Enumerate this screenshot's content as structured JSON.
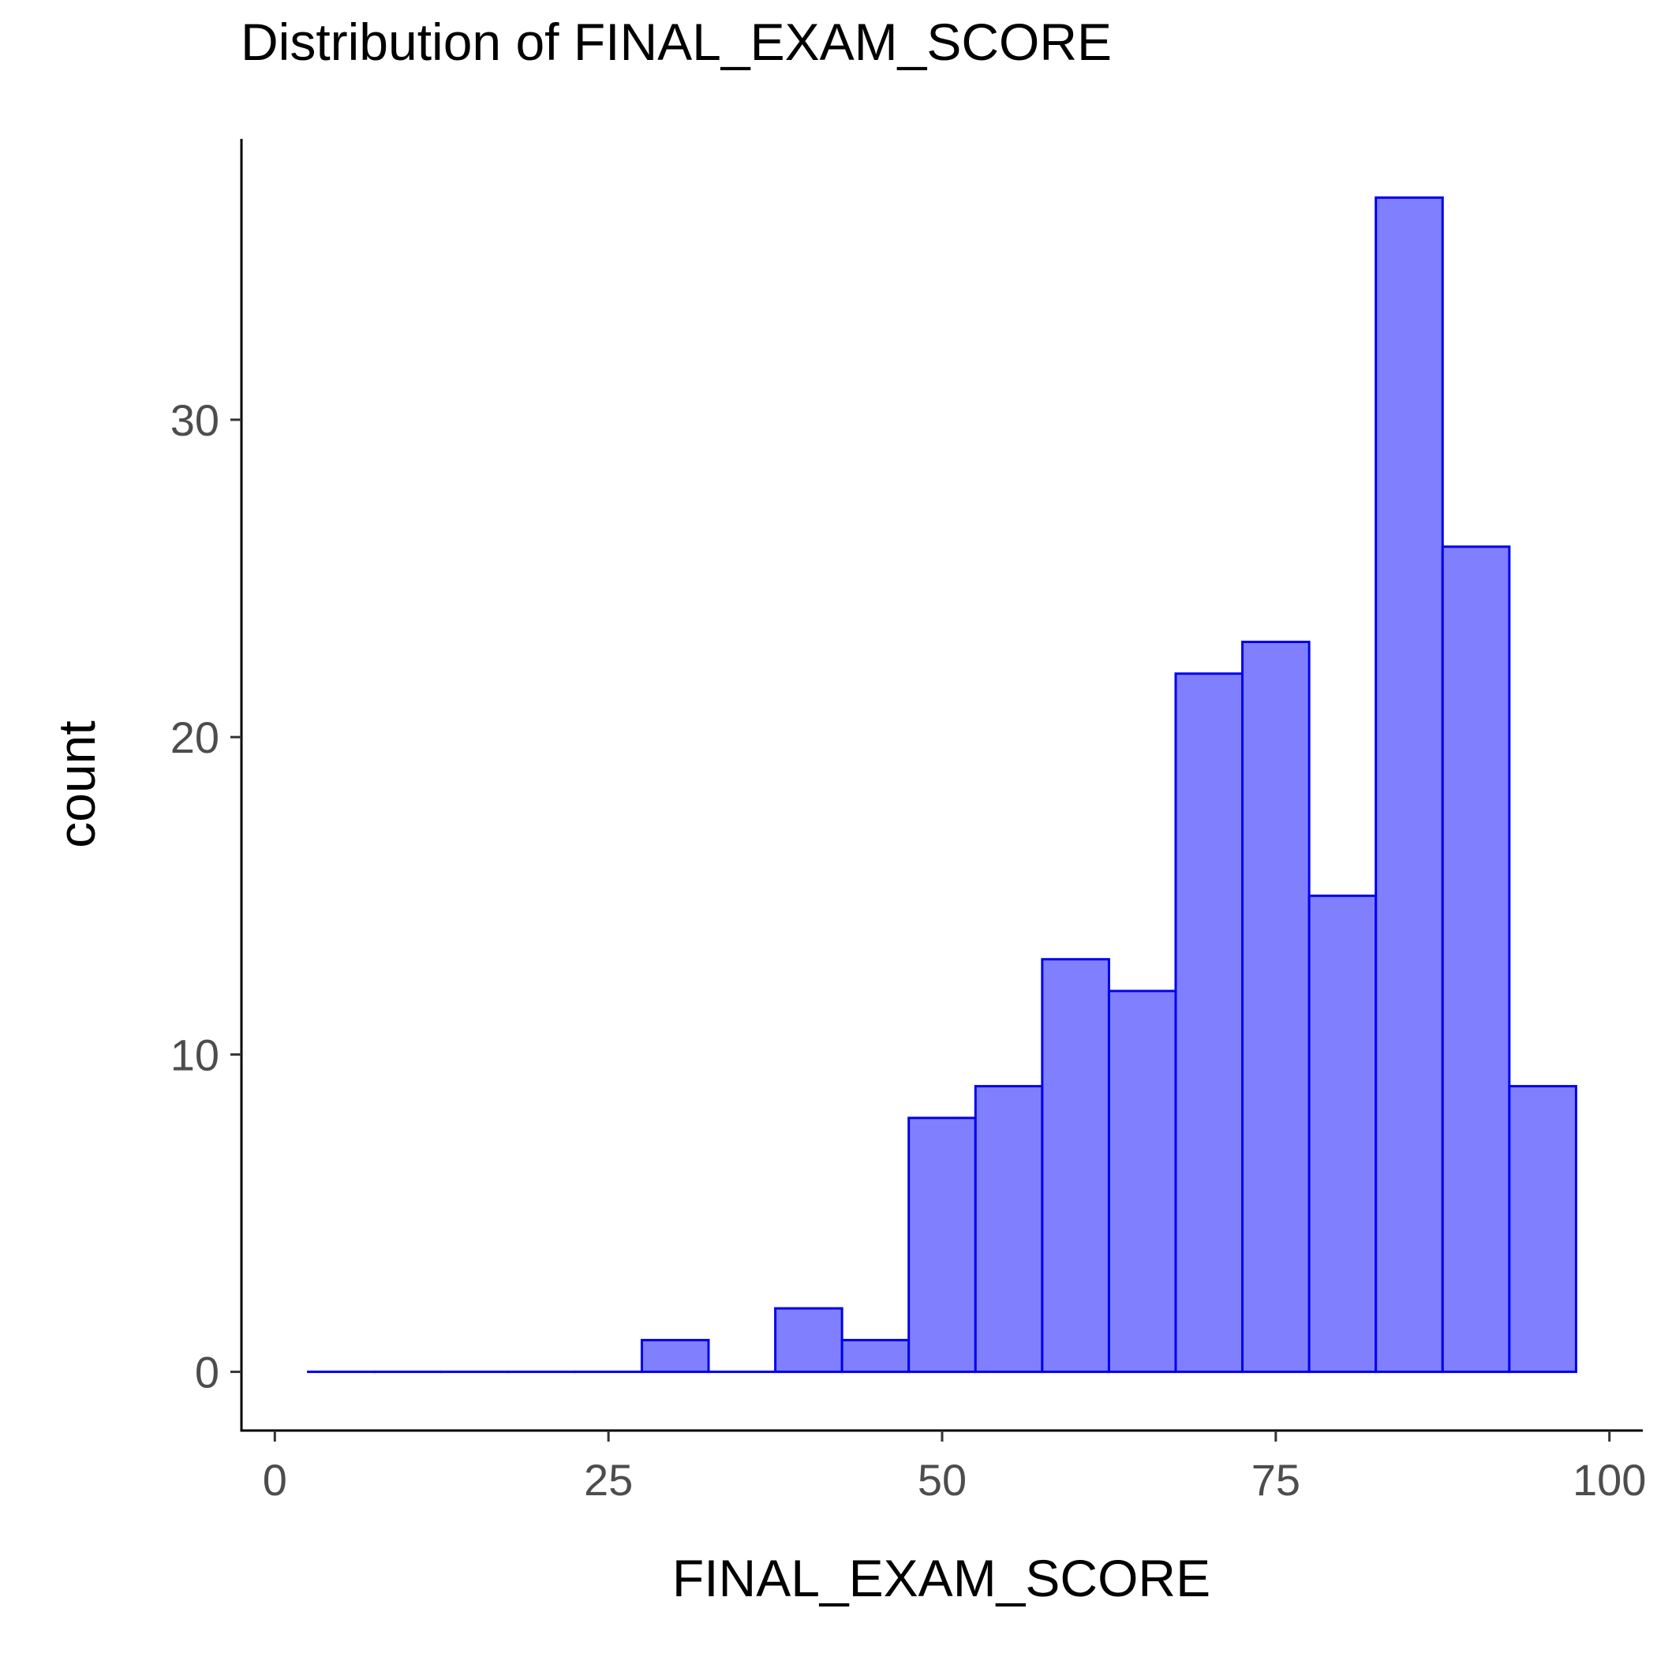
{
  "chart_data": {
    "type": "bar",
    "title": "Distribution of FINAL_EXAM_SCORE",
    "xlabel": "FINAL_EXAM_SCORE",
    "ylabel": "count",
    "bin_width": 5,
    "bins": [
      {
        "start": 2.5,
        "end": 7.5,
        "count": 0
      },
      {
        "start": 7.5,
        "end": 12.5,
        "count": 0
      },
      {
        "start": 12.5,
        "end": 17.5,
        "count": 0
      },
      {
        "start": 17.5,
        "end": 22.5,
        "count": 0
      },
      {
        "start": 22.5,
        "end": 27.5,
        "count": 0
      },
      {
        "start": 27.5,
        "end": 32.5,
        "count": 1
      },
      {
        "start": 32.5,
        "end": 37.5,
        "count": 0
      },
      {
        "start": 37.5,
        "end": 42.5,
        "count": 2
      },
      {
        "start": 42.5,
        "end": 47.5,
        "count": 1
      },
      {
        "start": 47.5,
        "end": 52.5,
        "count": 8
      },
      {
        "start": 52.5,
        "end": 57.5,
        "count": 9
      },
      {
        "start": 57.5,
        "end": 62.5,
        "count": 13
      },
      {
        "start": 62.5,
        "end": 67.5,
        "count": 12
      },
      {
        "start": 67.5,
        "end": 72.5,
        "count": 22
      },
      {
        "start": 72.5,
        "end": 77.5,
        "count": 23
      },
      {
        "start": 77.5,
        "end": 82.5,
        "count": 15
      },
      {
        "start": 82.5,
        "end": 87.5,
        "count": 37
      },
      {
        "start": 87.5,
        "end": 92.5,
        "count": 26
      },
      {
        "start": 92.5,
        "end": 97.5,
        "count": 9
      }
    ],
    "xlim": [
      -2.5,
      102.5
    ],
    "ylim": [
      -1.85,
      38.85
    ],
    "x_ticks": [
      {
        "value": 0,
        "label": "0"
      },
      {
        "value": 25,
        "label": "25"
      },
      {
        "value": 50,
        "label": "50"
      },
      {
        "value": 75,
        "label": "75"
      },
      {
        "value": 100,
        "label": "100"
      }
    ],
    "y_ticks": [
      {
        "value": 0,
        "label": "0"
      },
      {
        "value": 10,
        "label": "10"
      },
      {
        "value": 20,
        "label": "20"
      },
      {
        "value": 30,
        "label": "30"
      }
    ],
    "grid": false,
    "legend": "none",
    "colors": {
      "bar_fill": "#8080ff",
      "bar_outline": "#0000ee",
      "axis": "#000000",
      "tick_label": "#4d4d4d"
    }
  }
}
